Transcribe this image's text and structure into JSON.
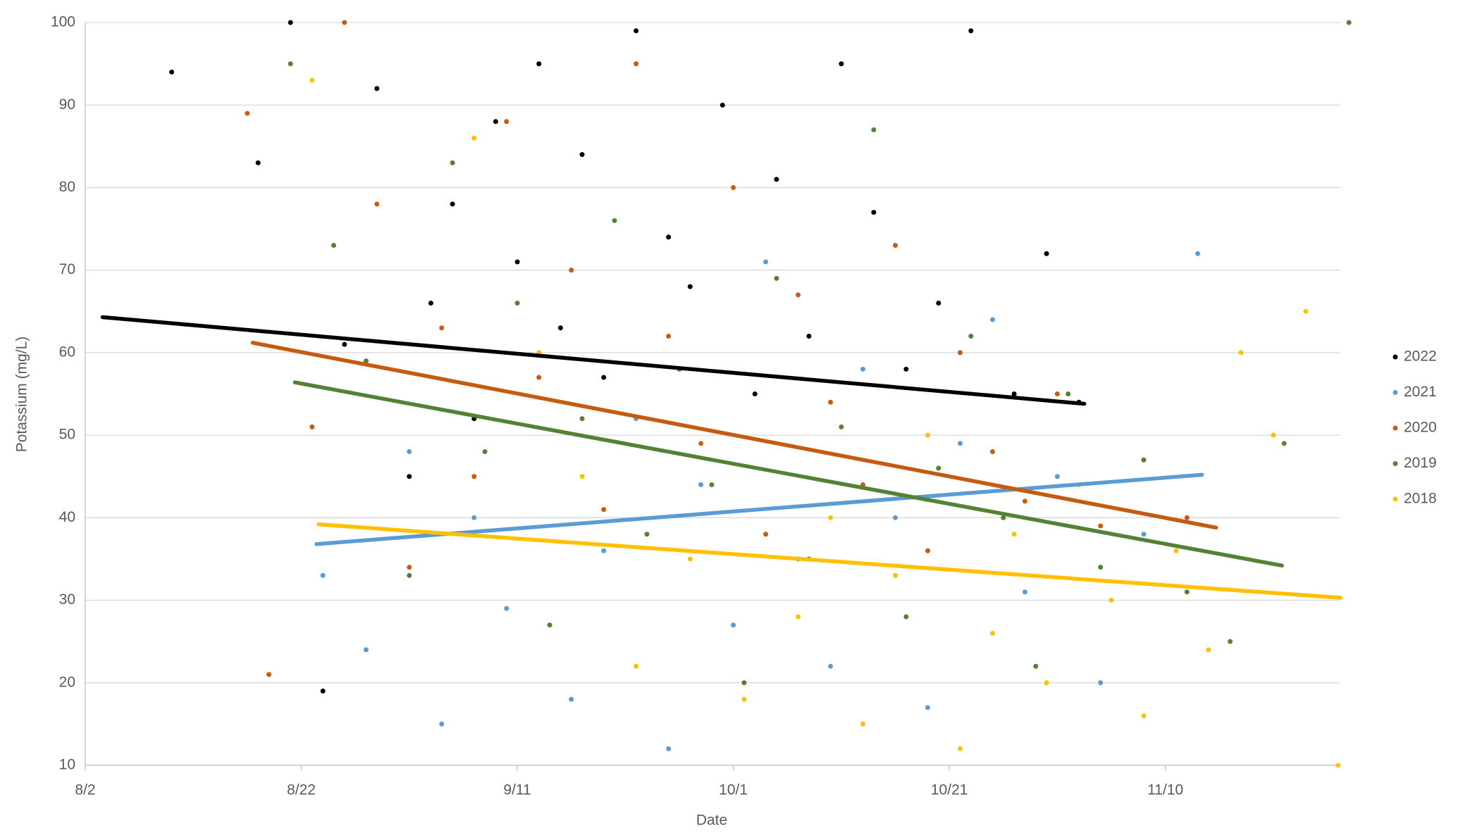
{
  "chart_data": {
    "type": "scatter",
    "x_label": "Date",
    "y_label": "Potassium (mg/L)",
    "xlim": [
      214,
      330.2
    ],
    "xticks": [
      {
        "value": 214,
        "label": "8/2"
      },
      {
        "value": 234,
        "label": "8/22"
      },
      {
        "value": 254,
        "label": "9/11"
      },
      {
        "value": 274,
        "label": "10/1"
      },
      {
        "value": 294,
        "label": "10/21"
      },
      {
        "value": 314,
        "label": "11/10"
      }
    ],
    "ylim": [
      10,
      100
    ],
    "yticks": [
      10,
      20,
      30,
      40,
      50,
      60,
      70,
      80,
      90,
      100
    ],
    "grid": true,
    "legend": "right",
    "series": [
      {
        "name": "2022",
        "color": "#000000",
        "x": [
          222,
          230,
          233,
          236,
          238,
          241,
          244,
          246,
          248,
          250,
          252,
          254,
          256,
          258,
          260,
          262,
          265,
          268,
          270,
          273,
          276,
          278,
          281,
          284,
          287,
          290,
          293,
          296,
          300,
          303,
          306
        ],
        "values": [
          94,
          83,
          100,
          19,
          61,
          92,
          45,
          66,
          78,
          52,
          88,
          71,
          95,
          63,
          84,
          57,
          99,
          74,
          68,
          90,
          55,
          81,
          62,
          95,
          77,
          58,
          66,
          99,
          55,
          72,
          54
        ],
        "trendline": {
          "x": [
            215.6,
            306.5
          ],
          "values": [
            64.3,
            53.8
          ]
        }
      },
      {
        "name": "2021",
        "color": "#5b9bd5",
        "x": [
          236,
          240,
          244,
          247,
          250,
          253,
          256,
          259,
          262,
          265,
          268,
          271,
          274,
          277,
          280,
          283,
          286,
          289,
          292,
          295,
          298,
          301,
          304,
          308,
          312,
          317
        ],
        "values": [
          33,
          24,
          48,
          15,
          40,
          29,
          60,
          18,
          36,
          52,
          12,
          44,
          27,
          71,
          35,
          22,
          58,
          40,
          17,
          49,
          64,
          31,
          45,
          20,
          38,
          72
        ],
        "trendline": {
          "x": [
            235.4,
            317.4
          ],
          "values": [
            36.8,
            45.2
          ]
        }
      },
      {
        "name": "2020",
        "color": "#c55a11",
        "x": [
          229,
          231,
          235,
          238,
          241,
          244,
          247,
          250,
          253,
          256,
          259,
          262,
          265,
          268,
          271,
          274,
          277,
          280,
          283,
          286,
          289,
          292,
          295,
          298,
          301,
          304,
          308,
          312,
          316
        ],
        "values": [
          89,
          21,
          51,
          100,
          78,
          34,
          63,
          45,
          88,
          57,
          70,
          41,
          95,
          62,
          49,
          80,
          38,
          67,
          54,
          44,
          73,
          36,
          60,
          48,
          42,
          55,
          39,
          47,
          40
        ],
        "trendline": {
          "x": [
            229.5,
            318.7
          ],
          "values": [
            61.2,
            38.8
          ]
        }
      },
      {
        "name": "2019",
        "color": "#548235",
        "x": [
          233,
          237,
          240,
          244,
          248,
          251,
          254,
          257,
          260,
          263,
          266,
          269,
          272,
          275,
          278,
          281,
          284,
          287,
          290,
          293,
          296,
          299,
          302,
          305,
          308,
          312,
          316,
          320,
          325,
          331
        ],
        "values": [
          95,
          73,
          59,
          33,
          83,
          48,
          66,
          27,
          52,
          76,
          38,
          58,
          44,
          20,
          69,
          35,
          51,
          87,
          28,
          46,
          62,
          40,
          22,
          55,
          34,
          47,
          31,
          25,
          49,
          100
        ],
        "trendline": {
          "x": [
            233.4,
            324.8
          ],
          "values": [
            56.4,
            34.2
          ]
        }
      },
      {
        "name": "2018",
        "color": "#ffc000",
        "x": [
          235,
          250,
          256,
          260,
          265,
          270,
          275,
          280,
          283,
          286,
          289,
          292,
          295,
          298,
          300,
          303,
          306,
          309,
          312,
          315,
          318,
          321,
          324,
          327,
          330
        ],
        "values": [
          93,
          86,
          60,
          45,
          22,
          35,
          18,
          28,
          40,
          15,
          33,
          50,
          12,
          26,
          38,
          20,
          44,
          30,
          16,
          36,
          24,
          60,
          50,
          65,
          10
        ],
        "trendline": {
          "x": [
            235.6,
            330.2
          ],
          "values": [
            39.2,
            30.3
          ]
        }
      }
    ]
  }
}
